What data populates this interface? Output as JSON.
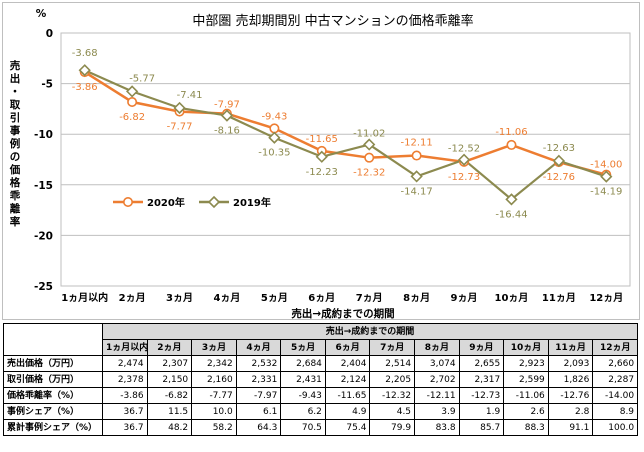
{
  "chart_data": {
    "type": "line",
    "title": "中部圏 売却期間別 中古マンションの価格乖離率",
    "unit": "%",
    "ylabel": "売出・取引事例の価格乖離率",
    "xlabel": "売出→成約までの期間",
    "categories": [
      "1ヵ月以内",
      "2ヵ月",
      "3ヵ月",
      "4ヵ月",
      "5ヵ月",
      "6ヵ月",
      "7ヵ月",
      "8ヵ月",
      "9ヵ月",
      "10ヵ月",
      "11ヵ月",
      "12ヵ月"
    ],
    "ylim": [
      -25,
      0
    ],
    "yticks": [
      "0",
      "-5",
      "-10",
      "-15",
      "-20",
      "-25"
    ],
    "legend_position": "bottom-left",
    "series": [
      {
        "name": "2020年",
        "color": "#ED7D31",
        "marker": "circle",
        "values": [
          -3.86,
          -6.82,
          -7.77,
          -7.97,
          -9.43,
          -11.65,
          -12.32,
          -12.11,
          -12.73,
          -11.06,
          -12.76,
          -14.0
        ],
        "labels": [
          "-3.86",
          "-6.82",
          "-7.77",
          "-7.97",
          "-9.43",
          "-11.65",
          "-12.32",
          "-12.11",
          "-12.73",
          "-11.06",
          "-12.76",
          "-14.00"
        ]
      },
      {
        "name": "2019年",
        "color": "#8C8A4F",
        "marker": "diamond",
        "values": [
          -3.68,
          -5.77,
          -7.41,
          -8.16,
          -10.35,
          -12.23,
          -11.02,
          -14.17,
          -12.52,
          -16.44,
          -12.63,
          -14.19
        ],
        "labels": [
          "-3.68",
          "-5.77",
          "-7.41",
          "-8.16",
          "-10.35",
          "-12.23",
          "-11.02",
          "-14.17",
          "-12.52",
          "-16.44",
          "-12.63",
          "-14.19"
        ]
      }
    ]
  },
  "table": {
    "group_header": "売出→成約までの期間",
    "columns": [
      "1ヵ月以内",
      "2ヵ月",
      "3ヵ月",
      "4ヵ月",
      "5ヵ月",
      "6ヵ月",
      "7ヵ月",
      "8ヵ月",
      "9ヵ月",
      "10ヵ月",
      "11ヵ月",
      "12ヵ月"
    ],
    "rows": [
      {
        "label": "売出価格（万円）",
        "values": [
          "2,474",
          "2,307",
          "2,342",
          "2,532",
          "2,684",
          "2,404",
          "2,514",
          "3,074",
          "2,655",
          "2,923",
          "2,093",
          "2,660"
        ]
      },
      {
        "label": "取引価格（万円）",
        "values": [
          "2,378",
          "2,150",
          "2,160",
          "2,331",
          "2,431",
          "2,124",
          "2,205",
          "2,702",
          "2,317",
          "2,599",
          "1,826",
          "2,287"
        ]
      },
      {
        "label": "価格乖離率（%）",
        "values": [
          "-3.86",
          "-6.82",
          "-7.77",
          "-7.97",
          "-9.43",
          "-11.65",
          "-12.32",
          "-12.11",
          "-12.73",
          "-11.06",
          "-12.76",
          "-14.00"
        ]
      },
      {
        "label": "事例シェア（%）",
        "values": [
          "36.7",
          "11.5",
          "10.0",
          "6.1",
          "6.2",
          "4.9",
          "4.5",
          "3.9",
          "1.9",
          "2.6",
          "2.8",
          "8.9"
        ]
      },
      {
        "label": "累計事例シェア（%）",
        "values": [
          "36.7",
          "48.2",
          "58.2",
          "64.3",
          "70.5",
          "75.4",
          "79.9",
          "83.8",
          "85.7",
          "88.3",
          "91.1",
          "100.0"
        ]
      }
    ]
  }
}
